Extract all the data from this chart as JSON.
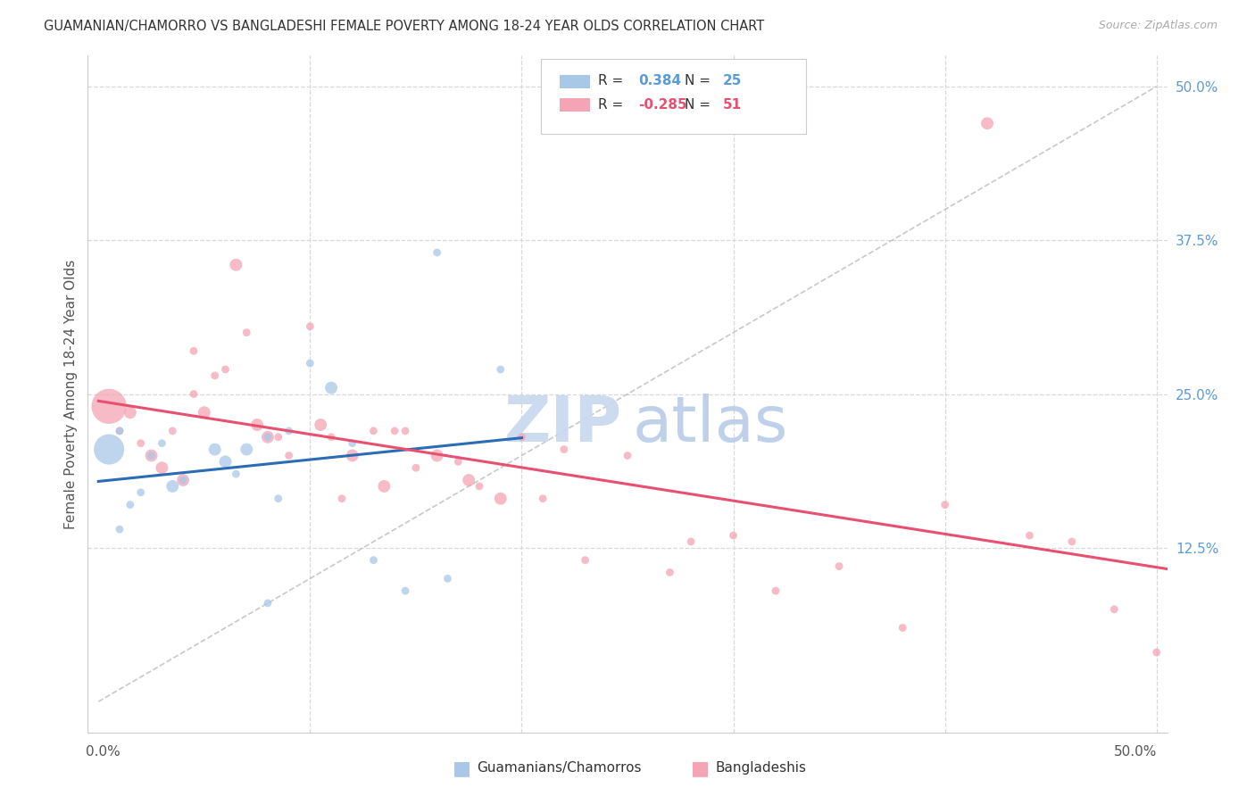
{
  "title": "GUAMANIAN/CHAMORRO VS BANGLADESHI FEMALE POVERTY AMONG 18-24 YEAR OLDS CORRELATION CHART",
  "source": "Source: ZipAtlas.com",
  "ylabel": "Female Poverty Among 18-24 Year Olds",
  "legend_blue_r": "0.384",
  "legend_blue_n": "25",
  "legend_pink_r": "-0.285",
  "legend_pink_n": "51",
  "legend_label_blue": "Guamanians/Chamorros",
  "legend_label_pink": "Bangladeshis",
  "blue_color": "#a8c8e8",
  "pink_color": "#f4a4b4",
  "blue_line_color": "#2a6cb5",
  "pink_line_color": "#e85070",
  "diag_line_color": "#bbbbbb",
  "bg_color": "#ffffff",
  "grid_color": "#d8d8d8",
  "watermark_zip_color": "#c8d8f0",
  "watermark_atlas_color": "#b8cce8",
  "right_tick_color": "#5b9bd5",
  "title_color": "#333333",
  "source_color": "#aaaaaa",
  "blue_scatter_x": [
    0.02,
    0.01,
    0.005,
    0.03,
    0.015,
    0.04,
    0.01,
    0.025,
    0.055,
    0.06,
    0.035,
    0.08,
    0.085,
    0.065,
    0.07,
    0.09,
    0.1,
    0.11,
    0.08,
    0.13,
    0.16,
    0.165,
    0.12,
    0.145,
    0.19
  ],
  "blue_scatter_y": [
    0.17,
    0.22,
    0.205,
    0.21,
    0.16,
    0.18,
    0.14,
    0.2,
    0.205,
    0.195,
    0.175,
    0.215,
    0.165,
    0.185,
    0.205,
    0.22,
    0.275,
    0.255,
    0.08,
    0.115,
    0.365,
    0.1,
    0.21,
    0.09,
    0.27
  ],
  "blue_scatter_size": [
    40,
    40,
    600,
    40,
    40,
    40,
    40,
    40,
    100,
    100,
    100,
    40,
    40,
    40,
    100,
    40,
    40,
    100,
    40,
    40,
    40,
    40,
    40,
    40,
    40
  ],
  "pink_scatter_x": [
    0.005,
    0.01,
    0.015,
    0.02,
    0.025,
    0.03,
    0.035,
    0.04,
    0.045,
    0.045,
    0.05,
    0.055,
    0.06,
    0.065,
    0.07,
    0.075,
    0.08,
    0.085,
    0.09,
    0.1,
    0.105,
    0.11,
    0.115,
    0.12,
    0.13,
    0.135,
    0.14,
    0.145,
    0.15,
    0.16,
    0.17,
    0.175,
    0.18,
    0.19,
    0.2,
    0.21,
    0.22,
    0.23,
    0.25,
    0.27,
    0.28,
    0.3,
    0.32,
    0.35,
    0.38,
    0.4,
    0.42,
    0.44,
    0.46,
    0.48,
    0.5
  ],
  "pink_scatter_y": [
    0.24,
    0.22,
    0.235,
    0.21,
    0.2,
    0.19,
    0.22,
    0.18,
    0.25,
    0.285,
    0.235,
    0.265,
    0.27,
    0.355,
    0.3,
    0.225,
    0.215,
    0.215,
    0.2,
    0.305,
    0.225,
    0.215,
    0.165,
    0.2,
    0.22,
    0.175,
    0.22,
    0.22,
    0.19,
    0.2,
    0.195,
    0.18,
    0.175,
    0.165,
    0.215,
    0.165,
    0.205,
    0.115,
    0.2,
    0.105,
    0.13,
    0.135,
    0.09,
    0.11,
    0.06,
    0.16,
    0.47,
    0.135,
    0.13,
    0.075,
    0.04
  ],
  "pink_scatter_size": [
    800,
    40,
    100,
    40,
    100,
    100,
    40,
    100,
    40,
    40,
    100,
    40,
    40,
    100,
    40,
    100,
    100,
    40,
    40,
    40,
    100,
    40,
    40,
    100,
    40,
    100,
    40,
    40,
    40,
    100,
    40,
    100,
    40,
    100,
    40,
    40,
    40,
    40,
    40,
    40,
    40,
    40,
    40,
    40,
    40,
    40,
    100,
    40,
    40,
    40,
    40
  ]
}
